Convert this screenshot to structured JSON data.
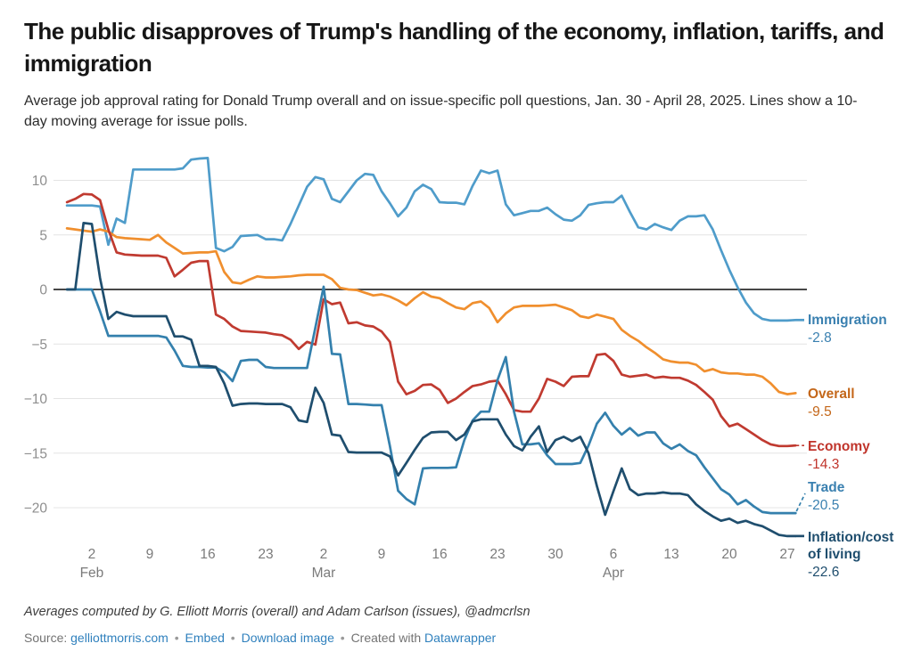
{
  "header": {
    "title": "The public disapproves of Trump's handling of the economy, inflation, tariffs, and immigration",
    "subtitle": "Average job approval rating for Donald Trump overall and on issue-specific poll questions, Jan. 30 - April 28, 2025. Lines show a 10-day moving average for issue polls."
  },
  "chart_data": {
    "type": "line",
    "title": "The public disapproves of Trump's handling of the economy, inflation, tariffs, and immigration",
    "date_range_shown": "Jan. 30 - April 28, 2025",
    "grid": "horizontal",
    "legend_position": "end-of-line labels",
    "ylim": [
      -24,
      13
    ],
    "y_axis": {
      "ticks": [
        {
          "value": 10,
          "label": "10"
        },
        {
          "value": 5,
          "label": "5"
        },
        {
          "value": 0,
          "label": "0"
        },
        {
          "value": -5,
          "label": "−5"
        },
        {
          "value": -10,
          "label": "−10"
        },
        {
          "value": -15,
          "label": "−15"
        },
        {
          "value": -20,
          "label": "−20"
        }
      ],
      "zero_line_color": "#2d2d2d",
      "grid_color": "#e4e4e4"
    },
    "x_axis": {
      "start_date": "Jan 30, 2025",
      "end_date": "Apr 28, 2025",
      "ticks": [
        {
          "day": 3,
          "label": "2",
          "month": "Feb"
        },
        {
          "day": 10,
          "label": "9",
          "month": null
        },
        {
          "day": 17,
          "label": "16",
          "month": null
        },
        {
          "day": 24,
          "label": "23",
          "month": null
        },
        {
          "day": 31,
          "label": "2",
          "month": "Mar"
        },
        {
          "day": 38,
          "label": "9",
          "month": null
        },
        {
          "day": 45,
          "label": "16",
          "month": null
        },
        {
          "day": 52,
          "label": "23",
          "month": null
        },
        {
          "day": 59,
          "label": "30",
          "month": null
        },
        {
          "day": 66,
          "label": "6",
          "month": "Apr"
        },
        {
          "day": 73,
          "label": "13",
          "month": null
        },
        {
          "day": 80,
          "label": "20",
          "month": null
        },
        {
          "day": 87,
          "label": "27",
          "month": null
        }
      ]
    },
    "series": [
      {
        "id": "immigration",
        "name": "Immigration",
        "end_label": "-2.8",
        "color": "#4f9cca",
        "label_color": "#3a80b0",
        "values": [
          7.7,
          7.7,
          7.7,
          7.7,
          7.6,
          4.1,
          6.5,
          6.1,
          11,
          11,
          11,
          11,
          11,
          11,
          11.1,
          11.9,
          12,
          12.05,
          3.8,
          3.5,
          3.9,
          4.9,
          4.95,
          5,
          4.6,
          4.6,
          4.5,
          6,
          7.7,
          9.4,
          10.3,
          10.1,
          8.3,
          8,
          9,
          10,
          10.6,
          10.5,
          9,
          7.9,
          6.7,
          7.5,
          9,
          9.6,
          9.2,
          8,
          7.95,
          7.95,
          7.8,
          9.5,
          10.9,
          10.65,
          10.9,
          7.8,
          6.8,
          7,
          7.2,
          7.2,
          7.5,
          6.9,
          6.4,
          6.3,
          6.8,
          7.75,
          7.9,
          8,
          8,
          8.6,
          7.1,
          5.7,
          5.5,
          6,
          5.7,
          5.45,
          6.3,
          6.7,
          6.7,
          6.8,
          5.5,
          3.6,
          1.8,
          0.2,
          -1.2,
          -2.2,
          -2.7,
          -2.85,
          -2.85,
          -2.85,
          -2.8
        ]
      },
      {
        "id": "overall",
        "name": "Overall",
        "end_label": "-9.5",
        "color": "#f08f2e",
        "label_color": "#c4671a",
        "values": [
          5.6,
          5.5,
          5.4,
          5.3,
          5.5,
          5.3,
          4.8,
          4.7,
          4.65,
          4.6,
          4.55,
          5,
          4.3,
          3.8,
          3.3,
          3.35,
          3.4,
          3.4,
          3.5,
          1.6,
          0.65,
          0.55,
          0.9,
          1.2,
          1.1,
          1.1,
          1.15,
          1.2,
          1.3,
          1.35,
          1.35,
          1.35,
          0.95,
          0.15,
          0,
          -0.05,
          -0.3,
          -0.55,
          -0.45,
          -0.65,
          -1,
          -1.45,
          -0.8,
          -0.25,
          -0.65,
          -0.8,
          -1.25,
          -1.65,
          -1.8,
          -1.25,
          -1.1,
          -1.7,
          -3,
          -2.2,
          -1.65,
          -1.5,
          -1.5,
          -1.5,
          -1.45,
          -1.4,
          -1.65,
          -1.9,
          -2.45,
          -2.6,
          -2.3,
          -2.5,
          -2.7,
          -3.7,
          -4.25,
          -4.7,
          -5.3,
          -5.8,
          -6.4,
          -6.6,
          -6.7,
          -6.7,
          -6.9,
          -7.5,
          -7.3,
          -7.6,
          -7.7,
          -7.7,
          -7.8,
          -7.8,
          -8,
          -8.6,
          -9.4,
          -9.6,
          -9.5
        ]
      },
      {
        "id": "economy",
        "name": "Economy",
        "end_label": "-14.3",
        "color": "#c03a30",
        "label_color": "#c0342b",
        "values": [
          8,
          8.3,
          8.75,
          8.7,
          8.2,
          5.5,
          3.4,
          3.2,
          3.15,
          3.1,
          3.1,
          3.1,
          2.9,
          1.2,
          1.8,
          2.45,
          2.6,
          2.6,
          -2.3,
          -2.7,
          -3.4,
          -3.8,
          -3.85,
          -3.9,
          -3.95,
          -4.1,
          -4.2,
          -4.6,
          -5.45,
          -4.8,
          -5.05,
          -0.9,
          -1.35,
          -1.2,
          -3.1,
          -3,
          -3.3,
          -3.4,
          -3.85,
          -4.8,
          -8.45,
          -9.6,
          -9.3,
          -8.75,
          -8.7,
          -9.2,
          -10.4,
          -10,
          -9.4,
          -8.85,
          -8.7,
          -8.45,
          -8.35,
          -9.6,
          -11.05,
          -11.2,
          -11.2,
          -10,
          -8.2,
          -8.45,
          -8.85,
          -8,
          -7.95,
          -7.95,
          -6,
          -5.9,
          -6.55,
          -7.8,
          -8,
          -7.9,
          -7.8,
          -8.1,
          -8,
          -8.1,
          -8.1,
          -8.35,
          -8.75,
          -9.4,
          -10.1,
          -11.6,
          -12.55,
          -12.3,
          -12.8,
          -13.3,
          -13.8,
          -14.2,
          -14.35,
          -14.35,
          -14.3
        ]
      },
      {
        "id": "trade",
        "name": "Trade",
        "end_label": "-20.5",
        "color": "#3480ad",
        "label_color": "#3a80b0",
        "values": [
          0,
          0,
          0,
          0,
          -2,
          -4.25,
          -4.25,
          -4.25,
          -4.25,
          -4.25,
          -4.25,
          -4.25,
          -4.4,
          -5.6,
          -7,
          -7.1,
          -7.1,
          -7.15,
          -7.15,
          -7.6,
          -8.4,
          -6.55,
          -6.45,
          -6.45,
          -7.1,
          -7.2,
          -7.2,
          -7.2,
          -7.2,
          -7.2,
          -3.5,
          0.25,
          -5.9,
          -5.95,
          -10.5,
          -10.5,
          -10.55,
          -10.6,
          -10.6,
          -14.35,
          -18.45,
          -19.2,
          -19.7,
          -16.4,
          -16.35,
          -16.35,
          -16.35,
          -16.3,
          -13.8,
          -12,
          -11.2,
          -11.2,
          -8.3,
          -6.2,
          -11.2,
          -14.2,
          -14.2,
          -14.1,
          -15.2,
          -16,
          -16,
          -16,
          -15.9,
          -14.3,
          -12.3,
          -11.3,
          -12.5,
          -13.3,
          -12.7,
          -13.4,
          -13.1,
          -13.1,
          -14.1,
          -14.6,
          -14.2,
          -14.8,
          -15.2,
          -16.3,
          -17.3,
          -18.3,
          -18.8,
          -19.7,
          -19.3,
          -19.9,
          -20.4,
          -20.5,
          -20.5,
          -20.5,
          -20.5
        ]
      },
      {
        "id": "inflation",
        "name": "Inflation/cost of living",
        "end_label": "-22.6",
        "color": "#1f4e6e",
        "label_color": "#1f4e6e",
        "values": [
          0,
          0,
          6.1,
          6,
          1.05,
          -2.7,
          -2.05,
          -2.3,
          -2.45,
          -2.45,
          -2.45,
          -2.45,
          -2.45,
          -4.3,
          -4.3,
          -4.6,
          -7,
          -7,
          -7.1,
          -8.6,
          -10.65,
          -10.5,
          -10.45,
          -10.45,
          -10.5,
          -10.5,
          -10.5,
          -10.8,
          -12,
          -12.15,
          -9,
          -10.4,
          -13.3,
          -13.4,
          -14.9,
          -14.95,
          -14.95,
          -14.95,
          -14.95,
          -15.3,
          -17.05,
          -15.9,
          -14.7,
          -13.6,
          -13.1,
          -13.05,
          -13.05,
          -13.8,
          -13.3,
          -12.1,
          -11.9,
          -11.9,
          -11.9,
          -13.3,
          -14.35,
          -14.75,
          -13.5,
          -12.55,
          -14.9,
          -13.8,
          -13.5,
          -13.9,
          -13.5,
          -15,
          -18,
          -20.65,
          -18.5,
          -16.4,
          -18.3,
          -18.85,
          -18.7,
          -18.7,
          -18.6,
          -18.7,
          -18.7,
          -18.85,
          -19.7,
          -20.3,
          -20.8,
          -21.2,
          -21,
          -21.4,
          -21.2,
          -21.5,
          -21.7,
          -22.1,
          -22.5,
          -22.6,
          -22.6
        ]
      }
    ]
  },
  "footer": {
    "byline": "Averages computed by G. Elliott Morris (overall) and Adam Carlson (issues), @admcrlsn",
    "source_prefix": "Source:",
    "source_link": "gelliottmorris.com",
    "separator": "•",
    "embed_label": "Embed",
    "download_label": "Download image",
    "created_with": "Created with",
    "created_with_link": "Datawrapper"
  }
}
